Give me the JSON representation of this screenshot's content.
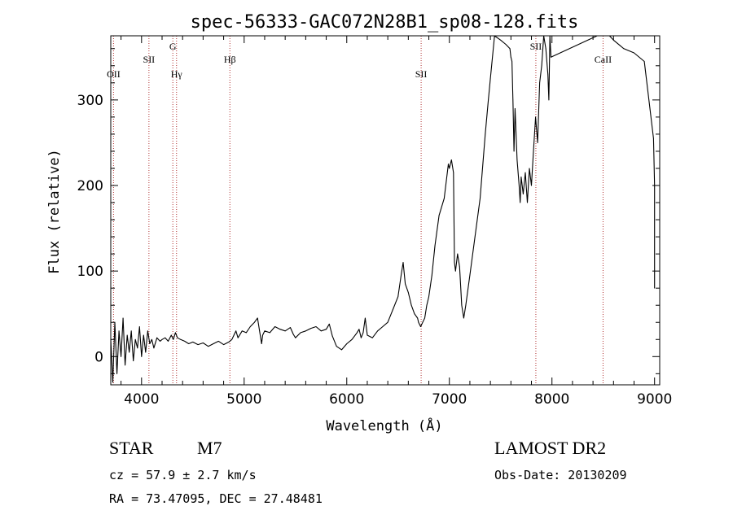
{
  "chart_data": {
    "type": "line",
    "title": "spec-56333-GAC072N28B1_sp08-128.fits",
    "xlabel": "Wavelength (Å)",
    "ylabel": "Flux (relative)",
    "xlim": [
      3700,
      9050
    ],
    "ylim": [
      -33,
      375
    ],
    "xticks": [
      4000,
      5000,
      6000,
      7000,
      8000,
      9000
    ],
    "yticks": [
      0,
      100,
      200,
      300
    ],
    "grid": false,
    "line_color": "#000000",
    "marker_color": "#b03030",
    "markers": [
      {
        "label": "OII",
        "x": 3727,
        "row": 3
      },
      {
        "label": "SII",
        "x": 4072,
        "row": 2
      },
      {
        "label": "G",
        "x": 4305,
        "row": 1
      },
      {
        "label": "Hγ",
        "x": 4341,
        "row": 3
      },
      {
        "label": "Hβ",
        "x": 4861,
        "row": 2
      },
      {
        "label": "SII",
        "x": 6725,
        "row": 3
      },
      {
        "label": "SII",
        "x": 7843,
        "row": 1
      },
      {
        "label": "CaII",
        "x": 8498,
        "row": 2
      }
    ],
    "series": [
      {
        "x": [
          3700,
          3720,
          3740,
          3760,
          3780,
          3800,
          3820,
          3840,
          3860,
          3880,
          3900,
          3920,
          3940,
          3960,
          3980,
          4000,
          4020,
          4040,
          4060,
          4080,
          4100,
          4120,
          4150,
          4180,
          4200,
          4230,
          4260,
          4290,
          4310,
          4330,
          4350,
          4380,
          4420,
          4460,
          4500,
          4550,
          4600,
          4650,
          4700,
          4750,
          4800,
          4850,
          4880,
          4900,
          4920,
          4940,
          4980,
          5020,
          5060,
          5100,
          5130,
          5150,
          5170,
          5180,
          5200,
          5250,
          5300,
          5350,
          5400,
          5450,
          5480,
          5500,
          5550,
          5600,
          5650,
          5700,
          5750,
          5800,
          5830,
          5860,
          5900,
          5950,
          6000,
          6050,
          6100,
          6120,
          6140,
          6160,
          6180,
          6200,
          6250,
          6300,
          6350,
          6400,
          6450,
          6500,
          6530,
          6550,
          6570,
          6600,
          6630,
          6660,
          6690,
          6700,
          6720,
          6740,
          6760,
          6780,
          6800,
          6830,
          6860,
          6900,
          6950,
          6990,
          7000,
          7020,
          7040,
          7050,
          7060,
          7080,
          7100,
          7120,
          7140,
          7160,
          7200,
          7250,
          7300,
          7350,
          7380,
          7400,
          7440,
          7500,
          7550,
          7590,
          7600,
          7610,
          7620,
          7630,
          7640,
          7660,
          7680,
          7690,
          7700,
          7720,
          7740,
          7760,
          7780,
          7800,
          7820,
          7840,
          7860,
          7880,
          7900,
          7920,
          7940,
          7960,
          7970,
          7980,
          7990,
          8440,
          8460,
          8480,
          8490,
          8500,
          8520,
          8540,
          8560,
          8600,
          8700,
          8800,
          8900,
          8990,
          9000,
          9000
        ],
        "y": [
          20,
          -30,
          40,
          -20,
          30,
          0,
          45,
          -10,
          25,
          5,
          30,
          -5,
          20,
          10,
          35,
          0,
          25,
          5,
          30,
          15,
          20,
          10,
          22,
          18,
          20,
          22,
          18,
          25,
          20,
          28,
          22,
          20,
          18,
          15,
          17,
          14,
          16,
          12,
          15,
          18,
          14,
          17,
          20,
          25,
          30,
          22,
          30,
          28,
          35,
          40,
          45,
          30,
          15,
          25,
          30,
          28,
          35,
          32,
          30,
          34,
          26,
          22,
          28,
          30,
          33,
          35,
          30,
          32,
          38,
          24,
          12,
          8,
          15,
          20,
          28,
          32,
          22,
          28,
          45,
          25,
          22,
          30,
          35,
          40,
          55,
          70,
          95,
          110,
          85,
          75,
          60,
          50,
          45,
          40,
          35,
          40,
          45,
          60,
          70,
          95,
          130,
          165,
          185,
          225,
          220,
          230,
          215,
          110,
          100,
          120,
          105,
          60,
          45,
          60,
          95,
          140,
          185,
          260,
          300,
          325,
          380,
          370,
          365,
          360,
          350,
          345,
          300,
          240,
          290,
          230,
          200,
          180,
          210,
          190,
          215,
          180,
          220,
          200,
          240,
          280,
          250,
          320,
          340,
          380,
          360,
          330,
          300,
          380,
          350,
          420,
          400,
          385,
          395,
          430,
          410,
          400,
          380,
          370,
          360,
          355,
          345,
          255,
          200,
          80
        ]
      }
    ]
  },
  "info": {
    "object_class": "STAR",
    "subclass": "M7",
    "cz": "cz = 57.9 ± 2.7 km/s",
    "radec": "RA =  73.47095, DEC =  27.48481",
    "survey": "LAMOST DR2",
    "obs_date": "Obs-Date: 20130209"
  }
}
